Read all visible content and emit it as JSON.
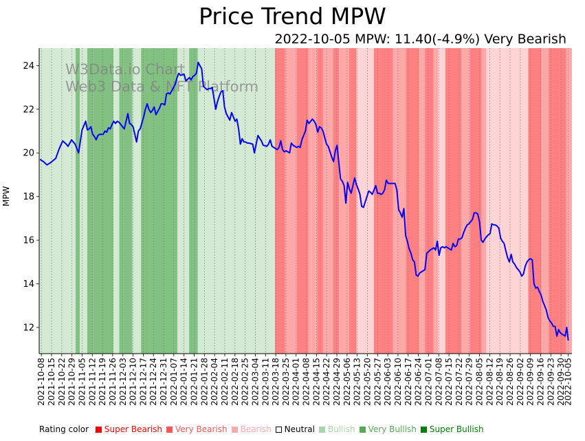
{
  "chart_data": {
    "type": "line",
    "title": "Price Trend MPW",
    "subtitle": "2022-10-05 MPW: 11.40(-4.9%) Very Bearish",
    "xlabel": "",
    "ylabel": "MPW",
    "ylim": [
      10.8,
      24.8
    ],
    "yticks": [
      12,
      14,
      16,
      18,
      20,
      22,
      24
    ],
    "grid": "vertical dotted at x ticks",
    "watermark": [
      "W3Data.io Chart",
      "Web3 Data & NFT Platform"
    ],
    "xticks": [
      "2021-10-08",
      "2021-10-15",
      "2021-10-22",
      "2021-10-29",
      "2021-11-05",
      "2021-11-12",
      "2021-11-19",
      "2021-11-26",
      "2021-12-03",
      "2021-12-10",
      "2021-12-17",
      "2021-12-24",
      "2021-12-31",
      "2022-01-07",
      "2022-01-14",
      "2022-01-21",
      "2022-01-28",
      "2022-02-04",
      "2022-02-11",
      "2022-02-18",
      "2022-02-25",
      "2022-03-04",
      "2022-03-11",
      "2022-03-18",
      "2022-03-25",
      "2022-04-01",
      "2022-04-08",
      "2022-04-15",
      "2022-04-22",
      "2022-04-29",
      "2022-05-06",
      "2022-05-13",
      "2022-05-20",
      "2022-05-27",
      "2022-06-03",
      "2022-06-10",
      "2022-06-17",
      "2022-06-24",
      "2022-07-01",
      "2022-07-08",
      "2022-07-15",
      "2022-07-22",
      "2022-07-29",
      "2022-08-05",
      "2022-08-12",
      "2022-08-19",
      "2022-08-26",
      "2022-09-02",
      "2022-09-09",
      "2022-09-16",
      "2022-09-23",
      "2022-09-30",
      "2022-10-05"
    ],
    "series": [
      {
        "name": "MPW",
        "color": "#0000ff",
        "x_days_from_start": [
          0,
          2,
          4,
          6,
          9,
          11,
          13,
          15,
          16,
          18,
          20,
          21,
          22,
          24,
          26,
          27,
          28,
          29,
          30,
          31,
          32,
          33,
          34,
          36,
          37,
          38,
          39,
          40,
          41,
          42,
          43,
          44,
          45,
          47,
          48,
          49,
          50,
          51,
          52,
          53,
          55,
          56,
          57,
          59,
          60,
          61,
          62,
          63,
          64,
          65,
          66,
          68,
          69,
          70,
          71,
          72,
          73,
          74,
          75,
          76,
          77,
          78,
          79,
          80,
          82,
          83,
          85,
          86,
          87,
          88,
          89,
          90,
          91,
          92,
          93,
          95,
          96,
          97,
          98,
          99,
          100,
          101,
          102,
          103,
          104,
          105,
          106,
          108,
          109,
          111,
          112,
          113,
          114,
          115,
          116,
          117,
          118,
          119,
          121,
          122,
          124,
          126,
          127,
          129,
          130,
          131,
          132,
          134,
          135,
          136,
          137,
          138,
          139,
          140,
          141,
          142,
          143,
          144,
          146,
          147,
          148,
          149,
          150,
          151,
          152,
          153,
          155,
          156,
          157,
          158,
          159,
          160,
          161,
          162,
          163,
          164,
          165,
          166,
          167,
          168,
          169,
          170,
          171,
          172,
          173,
          174,
          175,
          176,
          177,
          178,
          179,
          180,
          181,
          182,
          183,
          184,
          186,
          187,
          188,
          189,
          191,
          192,
          193,
          194,
          195,
          196,
          197,
          198,
          199,
          201,
          202,
          203,
          204,
          205,
          206,
          207,
          208,
          209,
          210,
          211,
          212,
          213,
          214,
          215,
          216,
          217,
          218,
          219,
          220,
          222,
          223,
          224,
          225,
          226,
          227,
          228,
          229,
          230,
          231,
          232,
          233,
          234,
          235,
          236,
          237,
          238,
          239,
          240,
          241,
          242,
          243,
          244,
          245,
          246,
          247,
          248,
          249,
          250,
          251,
          252,
          253,
          254,
          255,
          256,
          257,
          258,
          259,
          260,
          261,
          262,
          263,
          264,
          265,
          266,
          267,
          268,
          269,
          270,
          271,
          272,
          273,
          274,
          275,
          276,
          277,
          278,
          279,
          280,
          281,
          282,
          283,
          284,
          285,
          286,
          287,
          288,
          289,
          290,
          291,
          292,
          293,
          294,
          295,
          296,
          297,
          298,
          299,
          300,
          301,
          302,
          303,
          304,
          305,
          306,
          307,
          308,
          309,
          310,
          311,
          312,
          313,
          314,
          315,
          316,
          317,
          318,
          319,
          320,
          321,
          322,
          323,
          324,
          325,
          326,
          327,
          328,
          329,
          330,
          331,
          332,
          333,
          334,
          335,
          336,
          337,
          338,
          339,
          340,
          341,
          342,
          343,
          344,
          345,
          346,
          347,
          348,
          349,
          350,
          351,
          352,
          353,
          354,
          355,
          356,
          357,
          358,
          359,
          360,
          361,
          362,
          363,
          364
        ],
        "values": [
          19.7,
          19.6,
          19.45,
          19.55,
          19.75,
          20.2,
          20.55,
          20.4,
          20.3,
          20.6,
          20.4,
          20.2,
          20.0,
          21.05,
          21.45,
          21.05,
          21.1,
          21.2,
          20.85,
          20.75,
          20.6,
          20.8,
          20.85,
          20.85,
          21.0,
          20.95,
          21.15,
          21.1,
          21.3,
          21.45,
          21.35,
          21.45,
          21.4,
          21.2,
          21.1,
          21.45,
          21.8,
          21.35,
          21.3,
          21.2,
          20.5,
          21.0,
          21.1,
          21.65,
          22.0,
          22.25,
          22.0,
          21.85,
          21.95,
          22.1,
          21.75,
          22.05,
          22.25,
          22.25,
          22.2,
          22.7,
          22.75,
          22.7,
          22.85,
          23.0,
          23.15,
          23.45,
          23.65,
          23.55,
          23.6,
          23.3,
          23.45,
          23.35,
          23.5,
          23.55,
          23.65,
          24.15,
          24.0,
          23.85,
          23.05,
          22.9,
          22.95,
          22.95,
          23.0,
          22.5,
          22.0,
          22.35,
          22.6,
          22.8,
          22.85,
          22.1,
          21.8,
          21.5,
          21.85,
          21.45,
          21.55,
          21.1,
          20.4,
          20.65,
          20.5,
          20.5,
          20.45,
          20.45,
          20.4,
          20.0,
          20.8,
          20.55,
          20.35,
          20.3,
          20.4,
          20.6,
          20.3,
          20.2,
          20.15,
          20.25,
          20.55,
          20.15,
          20.05,
          20.1,
          20.05,
          20.0,
          20.45,
          20.35,
          20.25,
          20.3,
          20.25,
          20.6,
          20.8,
          21.0,
          21.5,
          21.35,
          21.55,
          21.45,
          21.3,
          20.95,
          21.2,
          21.15,
          21.0,
          20.7,
          20.4,
          20.3,
          20.05,
          19.8,
          19.6,
          20.1,
          20.35,
          19.55,
          18.8,
          18.7,
          18.5,
          17.7,
          18.65,
          18.35,
          18.15,
          18.5,
          18.85,
          18.55,
          18.35,
          18.1,
          17.55,
          17.5,
          18.0,
          18.25,
          18.2,
          18.1,
          18.5,
          18.15,
          18.15,
          18.1,
          18.15,
          18.3,
          18.75,
          18.6,
          18.6,
          18.6,
          18.6,
          18.3,
          17.4,
          17.25,
          17.05,
          17.45,
          16.2,
          15.95,
          15.6,
          15.4,
          15.1,
          15.0,
          14.4,
          14.35,
          14.5,
          14.55,
          14.6,
          14.65,
          15.4,
          15.55,
          15.6,
          15.65,
          15.55,
          15.95,
          15.3,
          15.65,
          15.7,
          15.65,
          15.7,
          15.65,
          15.6,
          15.55,
          15.85,
          15.7,
          15.75,
          16.05,
          16.05,
          16.1,
          16.35,
          16.55,
          16.7,
          16.75,
          16.85,
          16.95,
          17.25,
          17.25,
          17.2,
          16.85,
          16.0,
          15.9,
          16.05,
          16.15,
          16.25,
          16.3,
          16.75,
          16.7,
          16.7,
          16.65,
          16.55,
          16.1,
          15.95,
          15.85,
          15.5,
          15.2,
          15.0,
          15.35,
          15.0,
          14.9,
          14.75,
          14.65,
          14.55,
          14.35,
          14.45,
          14.8,
          15.0,
          15.1,
          15.15,
          15.1,
          14.0,
          13.8,
          13.85,
          13.65,
          13.5,
          13.2,
          13.0,
          12.8,
          12.45,
          12.3,
          12.2,
          12.05,
          12.05,
          11.6,
          11.9,
          11.75,
          11.95,
          11.85,
          11.6,
          11.6,
          11.6,
          11.55,
          11.5,
          11.5,
          11.45,
          11.45,
          11.4,
          11.4,
          11.4,
          11.4,
          11.4,
          11.4,
          11.4,
          11.4,
          11.4,
          11.4,
          11.4,
          11.4,
          11.4,
          11.4,
          11.4,
          11.4,
          11.4,
          11.4,
          11.4,
          11.4,
          11.4,
          11.4,
          11.4,
          11.4,
          11.4,
          11.4,
          11.4,
          11.4,
          11.4,
          11.4,
          11.4,
          11.4,
          11.4,
          11.4,
          11.4,
          11.4,
          11.4,
          11.4,
          11.4,
          11.4,
          11.4,
          11.4,
          11.4,
          11.4,
          11.4,
          11.4,
          11.4,
          11.4,
          11.4,
          11.4,
          11.4,
          11.4,
          11.4,
          11.4,
          11.4,
          11.4,
          11.4,
          11.4,
          11.4,
          11.4,
          11.4,
          11.4
        ]
      }
    ],
    "rating_bands": [
      {
        "from": 0,
        "to": 25,
        "rating": "Bullish"
      },
      {
        "from": 25,
        "to": 28,
        "rating": "Very Bullish"
      },
      {
        "from": 28,
        "to": 33,
        "rating": "Bullish"
      },
      {
        "from": 33,
        "to": 37,
        "rating": "Very Bullish"
      },
      {
        "from": 37,
        "to": 51,
        "rating": "Very Bullish"
      },
      {
        "from": 51,
        "to": 55,
        "rating": "Bullish"
      },
      {
        "from": 55,
        "to": 58,
        "rating": "Very Bullish"
      },
      {
        "from": 58,
        "to": 64,
        "rating": "Very Bullish"
      },
      {
        "from": 64,
        "to": 70,
        "rating": "Bullish"
      },
      {
        "from": 70,
        "to": 76,
        "rating": "Very Bullish"
      },
      {
        "from": 76,
        "to": 95,
        "rating": "Very Bullish"
      },
      {
        "from": 95,
        "to": 103,
        "rating": "Bullish"
      },
      {
        "from": 103,
        "to": 109,
        "rating": "Very Bullish"
      },
      {
        "from": 109,
        "to": 115,
        "rating": "Bullish"
      },
      {
        "from": 115,
        "to": 162,
        "rating": "Bullish"
      },
      {
        "from": 162,
        "to": 169,
        "rating": "Very Bearish"
      },
      {
        "from": 169,
        "to": 177,
        "rating": "Bearish"
      },
      {
        "from": 177,
        "to": 182,
        "rating": "Very Bearish"
      },
      {
        "from": 182,
        "to": 185,
        "rating": "Very Bearish"
      },
      {
        "from": 185,
        "to": 191,
        "rating": "Bearish"
      },
      {
        "from": 191,
        "to": 195,
        "rating": "Very Bearish"
      },
      {
        "from": 195,
        "to": 202,
        "rating": "Bearish"
      },
      {
        "from": 202,
        "to": 206,
        "rating": "Very Bearish"
      },
      {
        "from": 206,
        "to": 213,
        "rating": "Bearish"
      },
      {
        "from": 213,
        "to": 218,
        "rating": "Very Bearish"
      },
      {
        "from": 218,
        "to": 230,
        "rating": "Neutral-Bearish"
      },
      {
        "from": 230,
        "to": 235,
        "rating": "Very Bearish"
      },
      {
        "from": 235,
        "to": 243,
        "rating": "Very Bearish"
      },
      {
        "from": 243,
        "to": 252,
        "rating": "Bearish"
      },
      {
        "from": 252,
        "to": 261,
        "rating": "Very Bearish"
      },
      {
        "from": 261,
        "to": 265,
        "rating": "Bearish"
      },
      {
        "from": 265,
        "to": 271,
        "rating": "Very Bearish"
      },
      {
        "from": 271,
        "to": 274,
        "rating": "Bearish"
      },
      {
        "from": 274,
        "to": 279,
        "rating": "Neutral-Bearish"
      },
      {
        "from": 279,
        "to": 290,
        "rating": "Very Bearish"
      },
      {
        "from": 290,
        "to": 296,
        "rating": "Bearish"
      },
      {
        "from": 296,
        "to": 304,
        "rating": "Very Bearish"
      },
      {
        "from": 304,
        "to": 307,
        "rating": "Bearish"
      },
      {
        "from": 307,
        "to": 336,
        "rating": "Neutral-Bearish"
      },
      {
        "from": 336,
        "to": 345,
        "rating": "Very Bearish"
      },
      {
        "from": 345,
        "to": 350,
        "rating": "Bearish"
      },
      {
        "from": 350,
        "to": 362,
        "rating": "Very Bearish"
      },
      {
        "from": 362,
        "to": 366,
        "rating": "Bearish"
      }
    ],
    "band_colors": {
      "Super Bearish": "#ff0000",
      "Very Bearish": "#ff8080",
      "Bearish": "#ffa8a8",
      "Neutral-Bearish": "#ffd4d4",
      "Neutral": "#ffffff",
      "Bullish": "#d4ead4",
      "Very Bullish": "#82c182",
      "Super Bullish": "#008000"
    },
    "legend": {
      "label": "Rating color",
      "items": [
        {
          "label": "Super Bearish",
          "color": "#ff0000",
          "text_color": "#ff0000"
        },
        {
          "label": "Very Bearish",
          "color": "#ff5555",
          "text_color": "#ff5555"
        },
        {
          "label": "Bearish",
          "color": "#ffaaaa",
          "text_color": "#ffaaaa"
        },
        {
          "label": "Neutral",
          "color": "#ffffff",
          "text_color": "#000000"
        },
        {
          "label": "Bullish",
          "color": "#aad4aa",
          "text_color": "#aad4aa"
        },
        {
          "label": "Very Bullish",
          "color": "#55aa55",
          "text_color": "#55aa55"
        },
        {
          "label": "Super Bullish",
          "color": "#008000",
          "text_color": "#008000"
        }
      ]
    }
  }
}
